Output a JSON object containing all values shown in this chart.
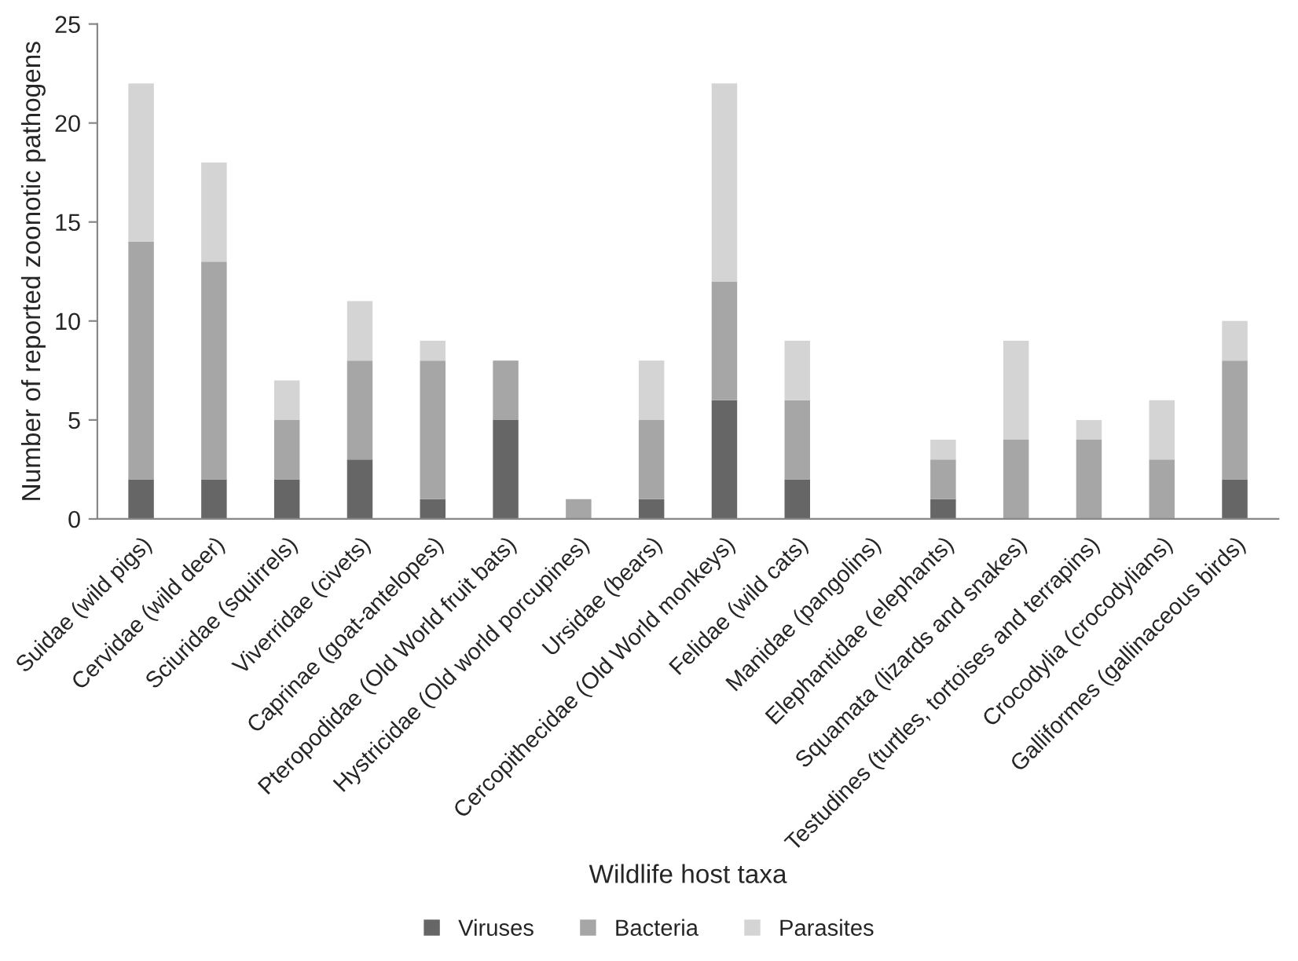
{
  "chart_data": {
    "type": "bar",
    "stacked": true,
    "xlabel": "Wildlife host taxa",
    "ylabel": "Number of reported zoonotic pathogens",
    "categories": [
      "Suidae (wild pigs)",
      "Cervidae (wild deer)",
      "Sciuridae (squirrels)",
      "Viverridae (civets)",
      "Caprinae (goat-antelopes)",
      "Pteropodidae (Old World fruit bats)",
      "Hystricidae (Old world porcupines)",
      "Ursidae (bears)",
      "Cercopithecidae (Old World monkeys)",
      "Felidae (wild cats)",
      "Manidae (pangolins)",
      "Elephantidae (elephants)",
      "Squamata (lizards and snakes)",
      "Testudines (turtles, tortoises and terrapins)",
      "Crocodylia (crocodylians)",
      "Galliformes (gallinaceous birds)"
    ],
    "series": [
      {
        "name": "Viruses",
        "color": "#666666",
        "values": [
          2,
          2,
          2,
          3,
          1,
          5,
          0,
          1,
          6,
          2,
          0,
          1,
          0,
          0,
          0,
          2
        ]
      },
      {
        "name": "Bacteria",
        "color": "#a6a6a6",
        "values": [
          12,
          11,
          3,
          5,
          7,
          3,
          1,
          4,
          6,
          4,
          0,
          2,
          4,
          4,
          3,
          6
        ]
      },
      {
        "name": "Parasites",
        "color": "#d4d4d4",
        "values": [
          8,
          5,
          2,
          3,
          1,
          0,
          0,
          3,
          10,
          3,
          0,
          1,
          5,
          1,
          3,
          2
        ]
      }
    ],
    "ylim": [
      0,
      25
    ],
    "yticks": [
      0,
      5,
      10,
      15,
      20,
      25
    ],
    "grid": false,
    "legend": "bottom"
  }
}
